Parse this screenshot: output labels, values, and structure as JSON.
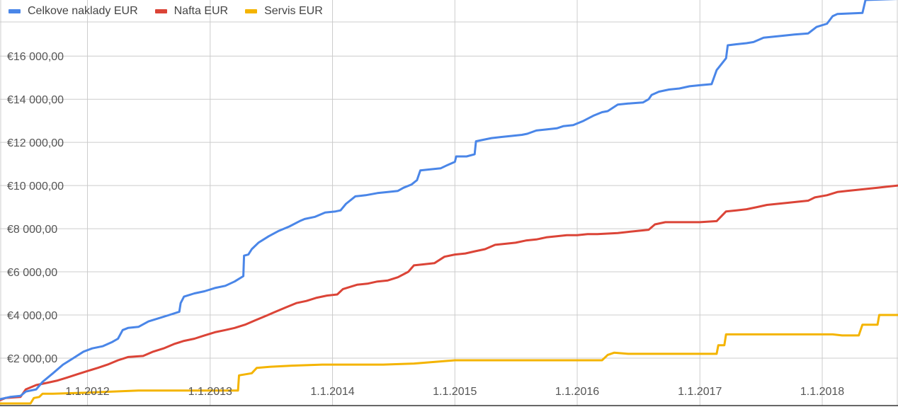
{
  "chart_data": {
    "type": "line",
    "title": "",
    "xlabel": "",
    "ylabel": "",
    "x_range": [
      "2011-04-15",
      "2018-08-15"
    ],
    "ylim": [
      -200,
      18600
    ],
    "grid": true,
    "legend_position": "top-left",
    "x_ticks": [
      {
        "date": "2012-01-01",
        "label": "1.1.2012"
      },
      {
        "date": "2013-01-01",
        "label": "1.1.2013"
      },
      {
        "date": "2014-01-01",
        "label": "1.1.2014"
      },
      {
        "date": "2015-01-01",
        "label": "1.1.2015"
      },
      {
        "date": "2016-01-01",
        "label": "1.1.2016"
      },
      {
        "date": "2017-01-01",
        "label": "1.1.2017"
      },
      {
        "date": "2018-01-01",
        "label": "1.1.2018"
      }
    ],
    "y_ticks": [
      {
        "value": 2000,
        "label": "€2 000,00"
      },
      {
        "value": 4000,
        "label": "€4 000,00"
      },
      {
        "value": 6000,
        "label": "€6 000,00"
      },
      {
        "value": 8000,
        "label": "€8 000,00"
      },
      {
        "value": 10000,
        "label": "€10 000,00"
      },
      {
        "value": 12000,
        "label": "€12 000,00"
      },
      {
        "value": 14000,
        "label": "€14 000,00"
      },
      {
        "value": 16000,
        "label": "€16 000,00"
      }
    ],
    "series": [
      {
        "name": "Celkove naklady EUR",
        "color": "#4a86e8",
        "points": [
          [
            "2011-04-15",
            100
          ],
          [
            "2011-05-15",
            200
          ],
          [
            "2011-06-15",
            250
          ],
          [
            "2011-07-01",
            450
          ],
          [
            "2011-08-01",
            550
          ],
          [
            "2011-08-20",
            900
          ],
          [
            "2011-09-20",
            1300
          ],
          [
            "2011-10-20",
            1700
          ],
          [
            "2011-11-20",
            2000
          ],
          [
            "2011-12-20",
            2300
          ],
          [
            "2012-01-15",
            2450
          ],
          [
            "2012-02-15",
            2550
          ],
          [
            "2012-03-15",
            2750
          ],
          [
            "2012-04-01",
            2900
          ],
          [
            "2012-04-15",
            3300
          ],
          [
            "2012-05-01",
            3400
          ],
          [
            "2012-06-01",
            3450
          ],
          [
            "2012-07-01",
            3700
          ],
          [
            "2012-08-01",
            3850
          ],
          [
            "2012-09-01",
            4000
          ],
          [
            "2012-10-01",
            4150
          ],
          [
            "2012-10-05",
            4550
          ],
          [
            "2012-10-15",
            4850
          ],
          [
            "2012-11-15",
            5000
          ],
          [
            "2012-12-15",
            5100
          ],
          [
            "2013-01-15",
            5250
          ],
          [
            "2013-02-15",
            5350
          ],
          [
            "2013-03-15",
            5550
          ],
          [
            "2013-04-10",
            5800
          ],
          [
            "2013-04-12",
            6750
          ],
          [
            "2013-04-25",
            6800
          ],
          [
            "2013-05-05",
            7050
          ],
          [
            "2013-05-25",
            7350
          ],
          [
            "2013-06-25",
            7650
          ],
          [
            "2013-07-25",
            7900
          ],
          [
            "2013-08-25",
            8100
          ],
          [
            "2013-09-25",
            8350
          ],
          [
            "2013-10-10",
            8450
          ],
          [
            "2013-11-10",
            8550
          ],
          [
            "2013-12-10",
            8750
          ],
          [
            "2014-01-10",
            8800
          ],
          [
            "2014-01-25",
            8850
          ],
          [
            "2014-02-10",
            9150
          ],
          [
            "2014-03-10",
            9500
          ],
          [
            "2014-04-10",
            9550
          ],
          [
            "2014-05-15",
            9650
          ],
          [
            "2014-06-15",
            9700
          ],
          [
            "2014-07-15",
            9750
          ],
          [
            "2014-08-01",
            9900
          ],
          [
            "2014-08-25",
            10050
          ],
          [
            "2014-09-10",
            10250
          ],
          [
            "2014-09-20",
            10700
          ],
          [
            "2014-10-20",
            10750
          ],
          [
            "2014-11-20",
            10800
          ],
          [
            "2014-12-10",
            10950
          ],
          [
            "2015-01-01",
            11100
          ],
          [
            "2015-01-05",
            11350
          ],
          [
            "2015-02-05",
            11350
          ],
          [
            "2015-03-01",
            11450
          ],
          [
            "2015-03-05",
            12050
          ],
          [
            "2015-03-20",
            12100
          ],
          [
            "2015-04-20",
            12200
          ],
          [
            "2015-05-20",
            12250
          ],
          [
            "2015-06-20",
            12300
          ],
          [
            "2015-07-20",
            12350
          ],
          [
            "2015-08-05",
            12400
          ],
          [
            "2015-09-01",
            12550
          ],
          [
            "2015-10-01",
            12600
          ],
          [
            "2015-11-01",
            12650
          ],
          [
            "2015-11-20",
            12750
          ],
          [
            "2015-12-20",
            12800
          ],
          [
            "2016-01-20",
            13000
          ],
          [
            "2016-02-20",
            13250
          ],
          [
            "2016-03-15",
            13400
          ],
          [
            "2016-04-01",
            13450
          ],
          [
            "2016-05-01",
            13750
          ],
          [
            "2016-06-01",
            13800
          ],
          [
            "2016-07-15",
            13850
          ],
          [
            "2016-08-01",
            14000
          ],
          [
            "2016-08-10",
            14200
          ],
          [
            "2016-09-01",
            14350
          ],
          [
            "2016-10-01",
            14450
          ],
          [
            "2016-11-01",
            14500
          ],
          [
            "2016-12-01",
            14600
          ],
          [
            "2017-01-01",
            14650
          ],
          [
            "2017-02-05",
            14700
          ],
          [
            "2017-02-20",
            15350
          ],
          [
            "2017-03-20",
            15900
          ],
          [
            "2017-03-25",
            16500
          ],
          [
            "2017-04-20",
            16550
          ],
          [
            "2017-05-20",
            16600
          ],
          [
            "2017-06-10",
            16650
          ],
          [
            "2017-07-10",
            16850
          ],
          [
            "2017-08-10",
            16900
          ],
          [
            "2017-09-10",
            16950
          ],
          [
            "2017-10-10",
            17000
          ],
          [
            "2017-11-20",
            17050
          ],
          [
            "2017-12-15",
            17350
          ],
          [
            "2018-01-15",
            17500
          ],
          [
            "2018-02-01",
            17850
          ],
          [
            "2018-02-15",
            17950
          ],
          [
            "2018-05-01",
            18000
          ],
          [
            "2018-05-10",
            18600
          ],
          [
            "2018-08-15",
            18650
          ]
        ]
      },
      {
        "name": "Nafta EUR",
        "color": "#db4437",
        "points": [
          [
            "2011-04-15",
            50
          ],
          [
            "2011-05-01",
            150
          ],
          [
            "2011-06-15",
            200
          ],
          [
            "2011-07-01",
            550
          ],
          [
            "2011-08-01",
            750
          ],
          [
            "2011-09-01",
            850
          ],
          [
            "2011-10-01",
            950
          ],
          [
            "2011-11-01",
            1100
          ],
          [
            "2011-12-01",
            1250
          ],
          [
            "2012-01-01",
            1400
          ],
          [
            "2012-02-01",
            1550
          ],
          [
            "2012-03-01",
            1700
          ],
          [
            "2012-04-01",
            1900
          ],
          [
            "2012-05-01",
            2050
          ],
          [
            "2012-06-15",
            2100
          ],
          [
            "2012-07-15",
            2300
          ],
          [
            "2012-08-15",
            2450
          ],
          [
            "2012-09-15",
            2650
          ],
          [
            "2012-10-15",
            2800
          ],
          [
            "2012-11-15",
            2900
          ],
          [
            "2012-12-15",
            3050
          ],
          [
            "2013-01-15",
            3200
          ],
          [
            "2013-02-15",
            3300
          ],
          [
            "2013-03-15",
            3400
          ],
          [
            "2013-04-15",
            3550
          ],
          [
            "2013-05-15",
            3750
          ],
          [
            "2013-06-15",
            3950
          ],
          [
            "2013-07-15",
            4150
          ],
          [
            "2013-08-15",
            4350
          ],
          [
            "2013-09-15",
            4550
          ],
          [
            "2013-10-15",
            4650
          ],
          [
            "2013-11-15",
            4800
          ],
          [
            "2013-12-15",
            4900
          ],
          [
            "2014-01-15",
            4950
          ],
          [
            "2014-02-01",
            5200
          ],
          [
            "2014-03-15",
            5400
          ],
          [
            "2014-04-15",
            5450
          ],
          [
            "2014-05-15",
            5550
          ],
          [
            "2014-06-15",
            5600
          ],
          [
            "2014-07-15",
            5750
          ],
          [
            "2014-08-15",
            6000
          ],
          [
            "2014-09-01",
            6300
          ],
          [
            "2014-10-01",
            6350
          ],
          [
            "2014-11-01",
            6400
          ],
          [
            "2014-12-01",
            6700
          ],
          [
            "2015-01-01",
            6800
          ],
          [
            "2015-02-01",
            6850
          ],
          [
            "2015-03-01",
            6950
          ],
          [
            "2015-04-01",
            7050
          ],
          [
            "2015-05-01",
            7250
          ],
          [
            "2015-06-01",
            7300
          ],
          [
            "2015-07-01",
            7350
          ],
          [
            "2015-08-01",
            7450
          ],
          [
            "2015-09-01",
            7500
          ],
          [
            "2015-10-01",
            7600
          ],
          [
            "2015-11-01",
            7650
          ],
          [
            "2015-12-01",
            7700
          ],
          [
            "2016-01-01",
            7700
          ],
          [
            "2016-02-01",
            7750
          ],
          [
            "2016-03-01",
            7750
          ],
          [
            "2016-05-01",
            7800
          ],
          [
            "2016-06-01",
            7850
          ],
          [
            "2016-07-01",
            7900
          ],
          [
            "2016-08-01",
            7950
          ],
          [
            "2016-08-20",
            8200
          ],
          [
            "2016-09-20",
            8300
          ],
          [
            "2016-11-01",
            8300
          ],
          [
            "2016-12-01",
            8300
          ],
          [
            "2017-01-01",
            8300
          ],
          [
            "2017-02-20",
            8350
          ],
          [
            "2017-03-20",
            8800
          ],
          [
            "2017-04-20",
            8850
          ],
          [
            "2017-05-20",
            8900
          ],
          [
            "2017-06-20",
            9000
          ],
          [
            "2017-07-20",
            9100
          ],
          [
            "2017-08-20",
            9150
          ],
          [
            "2017-09-20",
            9200
          ],
          [
            "2017-10-20",
            9250
          ],
          [
            "2017-11-20",
            9300
          ],
          [
            "2017-12-10",
            9450
          ],
          [
            "2018-01-15",
            9550
          ],
          [
            "2018-02-15",
            9700
          ],
          [
            "2018-03-15",
            9750
          ],
          [
            "2018-04-15",
            9800
          ],
          [
            "2018-05-15",
            9850
          ],
          [
            "2018-06-15",
            9900
          ],
          [
            "2018-07-15",
            9950
          ],
          [
            "2018-08-15",
            10000
          ]
        ]
      },
      {
        "name": "Servis EUR",
        "color": "#f4b400",
        "points": [
          [
            "2011-04-15",
            -100
          ],
          [
            "2011-07-15",
            -100
          ],
          [
            "2011-07-25",
            150
          ],
          [
            "2011-08-10",
            200
          ],
          [
            "2011-08-20",
            350
          ],
          [
            "2011-09-20",
            350
          ],
          [
            "2012-01-01",
            400
          ],
          [
            "2012-06-01",
            500
          ],
          [
            "2013-03-25",
            500
          ],
          [
            "2013-03-28",
            1200
          ],
          [
            "2013-05-05",
            1300
          ],
          [
            "2013-05-20",
            1550
          ],
          [
            "2013-07-01",
            1600
          ],
          [
            "2013-09-01",
            1650
          ],
          [
            "2013-12-01",
            1700
          ],
          [
            "2014-06-01",
            1700
          ],
          [
            "2014-09-01",
            1750
          ],
          [
            "2015-01-01",
            1900
          ],
          [
            "2015-06-01",
            1900
          ],
          [
            "2016-01-01",
            1900
          ],
          [
            "2016-03-15",
            1900
          ],
          [
            "2016-04-01",
            2150
          ],
          [
            "2016-04-20",
            2250
          ],
          [
            "2016-06-01",
            2200
          ],
          [
            "2017-02-20",
            2200
          ],
          [
            "2017-02-25",
            2600
          ],
          [
            "2017-03-15",
            2600
          ],
          [
            "2017-03-20",
            3100
          ],
          [
            "2017-06-01",
            3100
          ],
          [
            "2018-01-01",
            3100
          ],
          [
            "2018-02-01",
            3100
          ],
          [
            "2018-03-01",
            3050
          ],
          [
            "2018-04-20",
            3050
          ],
          [
            "2018-05-01",
            3550
          ],
          [
            "2018-06-15",
            3550
          ],
          [
            "2018-06-20",
            4000
          ],
          [
            "2018-08-15",
            4000
          ]
        ]
      }
    ]
  }
}
